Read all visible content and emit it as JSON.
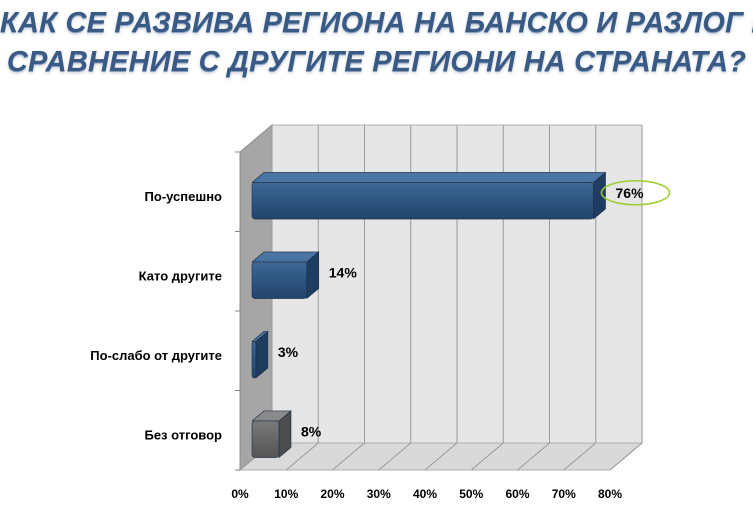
{
  "title": {
    "line1": "КАК СЕ РАЗВИВА РЕГИОНА НА БАНСКО И РАЗЛОГ В",
    "line2": "СРАВНЕНИЕ С ДРУГИТЕ РЕГИОНИ НА СТРАНАТА?"
  },
  "colors": {
    "title": "#3a5a86",
    "bar_blue": "#2e5480",
    "bar_gray": "#6b6b6b",
    "highlight": "#9acd32",
    "plot_back": "#e6e6e6",
    "plot_floor": "#d9d9d9",
    "plot_side": "#a6a6a6"
  },
  "chart_data": {
    "type": "bar",
    "orientation": "horizontal",
    "style": "3d",
    "categories": [
      "По-успешно",
      "Като другите",
      "По-слабо от другите",
      "Без отговор"
    ],
    "values": [
      76,
      14,
      3,
      8
    ],
    "value_labels": [
      "76%",
      "14%",
      "3%",
      "8%"
    ],
    "bar_colors": [
      "blue",
      "blue",
      "blue",
      "gray"
    ],
    "highlighted_label": "76%",
    "xlim": [
      0,
      80
    ],
    "xticks": [
      0,
      10,
      20,
      30,
      40,
      50,
      60,
      70,
      80
    ],
    "xtick_labels": [
      "0%",
      "10%",
      "20%",
      "30%",
      "40%",
      "50%",
      "60%",
      "70%",
      "80%"
    ],
    "grid": true,
    "legend": "none"
  }
}
